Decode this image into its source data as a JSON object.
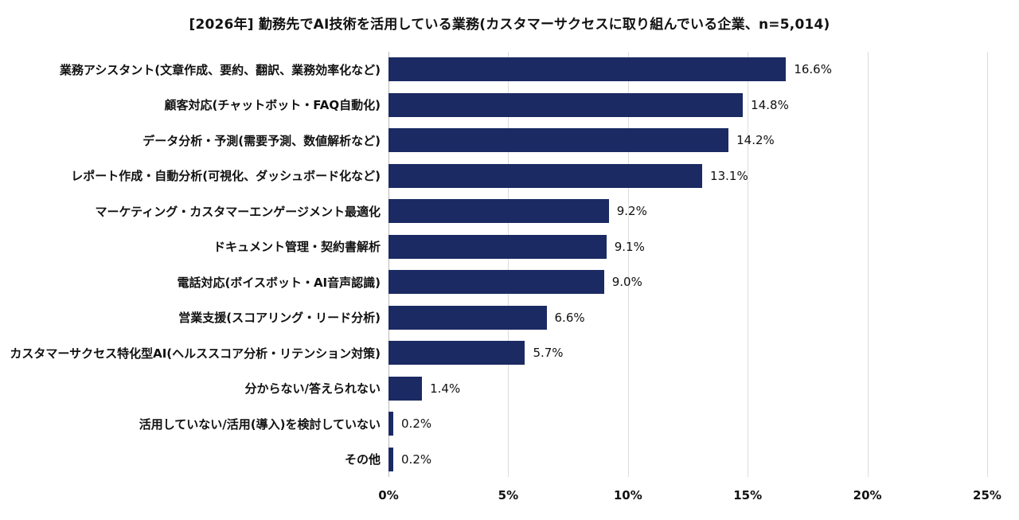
{
  "chart_data": {
    "type": "bar",
    "orientation": "horizontal",
    "title": "[2026年] 勤務先でAI技術を活用している業務(カスタマーサクセスに取り組んでいる企業、n=5,014)",
    "categories": [
      "業務アシスタント(文章作成、要約、翻訳、業務効率化など)",
      "顧客対応(チャットボット・FAQ自動化)",
      "データ分析・予測(需要予測、数値解析など)",
      "レポート作成・自動分析(可視化、ダッシュボード化など)",
      "マーケティング・カスタマーエンゲージメント最適化",
      "ドキュメント管理・契約書解析",
      "電話対応(ボイスボット・AI音声認識)",
      "営業支援(スコアリング・リード分析)",
      "カスタマーサクセス特化型AI(ヘルススコア分析・リテンション対策)",
      "分からない/答えられない",
      "活用していない/活用(導入)を検討していない",
      "その他"
    ],
    "values": [
      16.6,
      14.8,
      14.2,
      13.1,
      9.2,
      9.1,
      9.0,
      6.6,
      5.7,
      1.4,
      0.2,
      0.2
    ],
    "value_labels": [
      "16.6%",
      "14.8%",
      "14.2%",
      "13.1%",
      "9.2%",
      "9.1%",
      "9.0%",
      "6.6%",
      "5.7%",
      "1.4%",
      "0.2%",
      "0.2%"
    ],
    "xlim": [
      0,
      25
    ],
    "x_ticks": [
      0,
      5,
      10,
      15,
      20,
      25
    ],
    "x_tick_labels": [
      "0%",
      "5%",
      "10%",
      "15%",
      "20%",
      "25%"
    ],
    "bar_color": "#1b2a63",
    "grid": true,
    "legend": "none"
  }
}
